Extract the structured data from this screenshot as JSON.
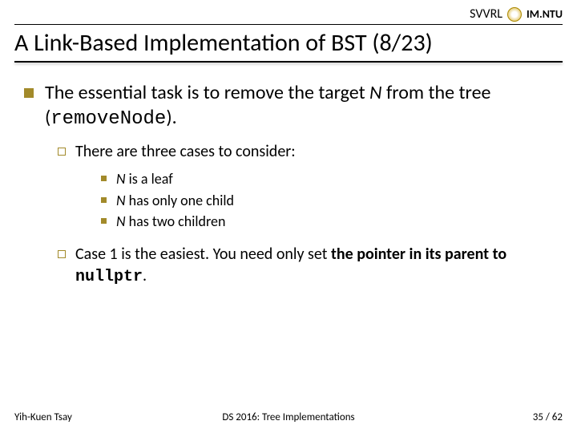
{
  "header": {
    "left": "SVVRL",
    "right": "IM.NTU"
  },
  "title": "A Link-Based Implementation of BST (8/23)",
  "colors": {
    "bullet_lg": "#a28a2a",
    "bullet_sm_border": "#a28a2a",
    "bullet_xs": "#a28a2a"
  },
  "body": {
    "p1_a": "The essential task is to remove the target ",
    "p1_n": "N",
    "p1_b": " from the tree (",
    "p1_code": "removeNode",
    "p1_c": ").",
    "p2": "There are three cases to consider:",
    "c1_a": "N",
    "c1_b": " is a leaf",
    "c2_a": "N",
    "c2_b": " has only one child",
    "c3_a": "N",
    "c3_b": " has two children",
    "p3_a": "Case 1 is the easiest. You need only set ",
    "p3_b": "the pointer in its parent to ",
    "p3_code": "nullptr",
    "p3_c": "."
  },
  "footer": {
    "left": "Yih-Kuen Tsay",
    "center": "DS 2016: Tree Implementations",
    "right": "35 / 62"
  }
}
